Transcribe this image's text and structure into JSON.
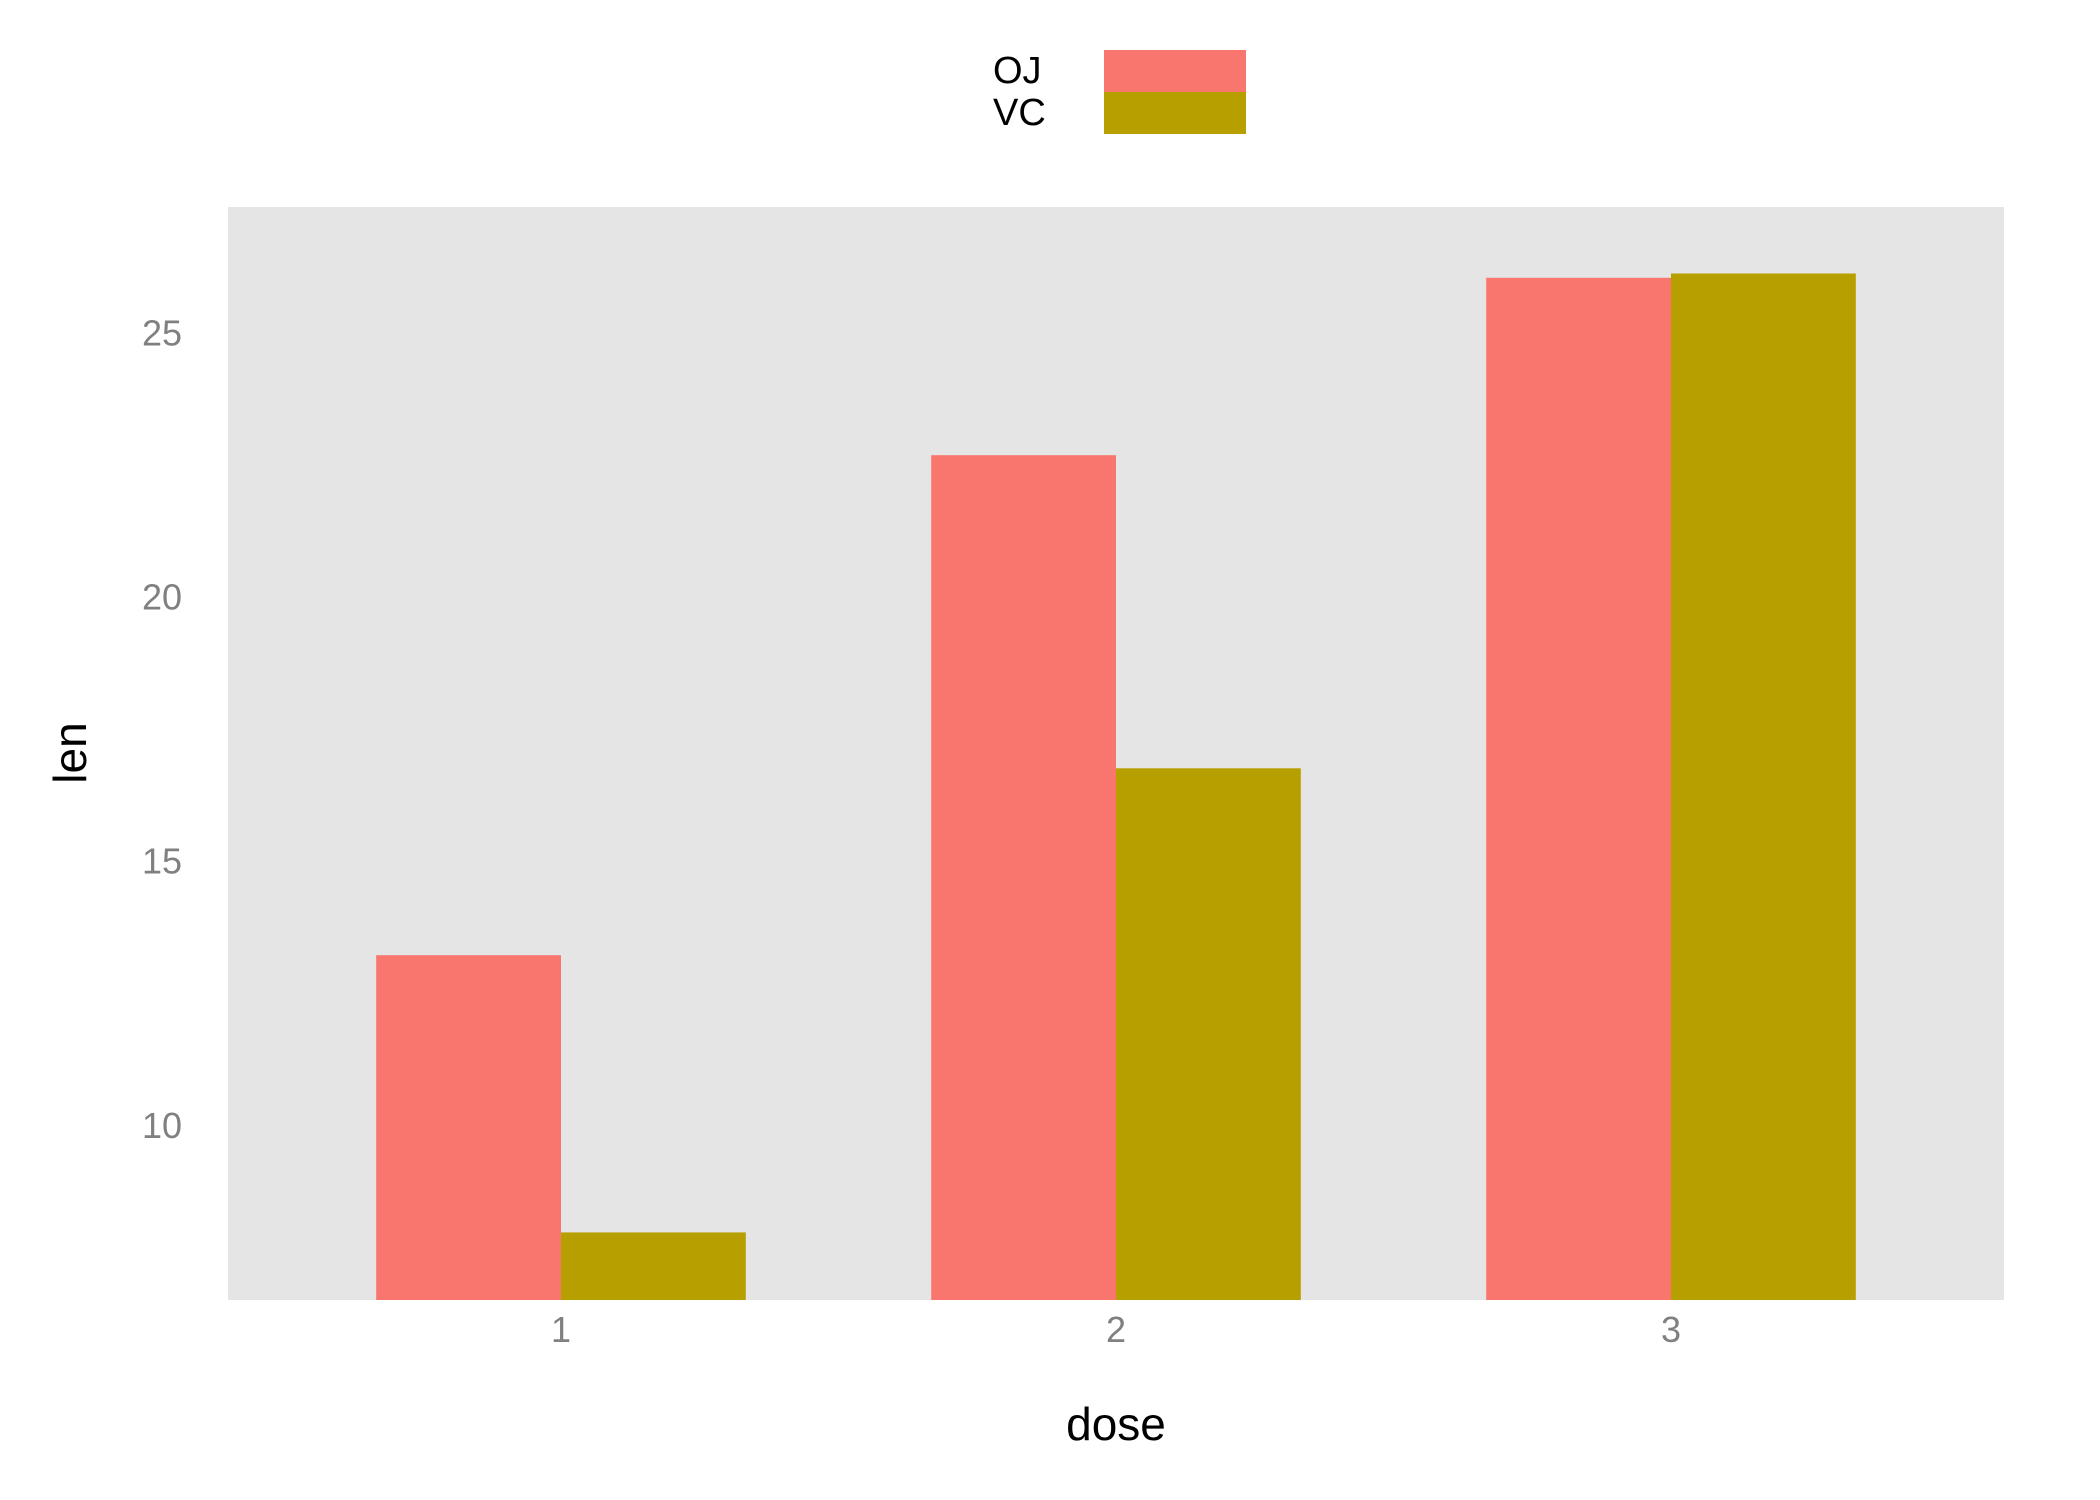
{
  "chart_data": {
    "type": "bar",
    "xlabel": "dose",
    "ylabel": "len",
    "categories": [
      "1",
      "2",
      "3"
    ],
    "series": [
      {
        "name": "OJ",
        "color": "#F8766D",
        "values": [
          13.23,
          22.7,
          26.06
        ]
      },
      {
        "name": "VC",
        "color": "#B79F00",
        "values": [
          7.98,
          16.77,
          26.14
        ]
      }
    ],
    "yticks": [
      10,
      15,
      20,
      25
    ],
    "ylim": [
      6.7,
      27.4
    ],
    "grid": false,
    "legend_position": "top",
    "panel_background": "#E5E5E5"
  }
}
